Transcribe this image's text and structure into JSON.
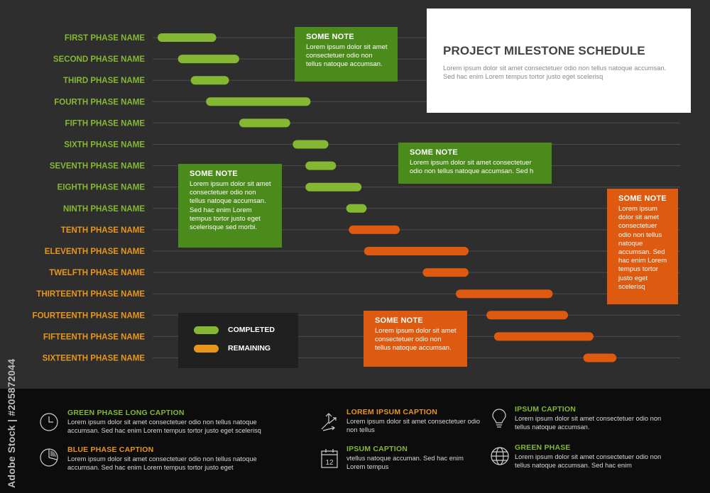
{
  "title": "PROJECT MILESTONE SCHEDULE",
  "subtitle": "Lorem ipsum dolor sit amet consectetuer odio non tellus natoque accumsan. Sed hac enim Lorem tempus tortor justo eget scelerisq",
  "colors": {
    "completed": "#84b832",
    "remaining": "#e7961a",
    "remaining_bar": "#de5a10",
    "note_green": "#4b8b1b",
    "note_orange": "#de5a10",
    "background": "#2e2e2e"
  },
  "chart_data": {
    "type": "gantt",
    "phases": [
      {
        "name": "FIRST PHASE NAME",
        "start": 0.0,
        "end": 1.15,
        "status": "completed"
      },
      {
        "name": "SECOND PHASE NAME",
        "start": 0.4,
        "end": 1.6,
        "status": "completed"
      },
      {
        "name": "THIRD PHASE NAME",
        "start": 0.65,
        "end": 1.4,
        "status": "completed"
      },
      {
        "name": "FOURTH PHASE NAME",
        "start": 0.95,
        "end": 3.0,
        "status": "completed"
      },
      {
        "name": "FIFTH PHASE NAME",
        "start": 1.6,
        "end": 2.6,
        "status": "completed"
      },
      {
        "name": "SIXTH PHASE NAME",
        "start": 2.65,
        "end": 3.35,
        "status": "completed"
      },
      {
        "name": "SEVENTH PHASE NAME",
        "start": 2.9,
        "end": 3.5,
        "status": "completed"
      },
      {
        "name": "EIGHTH PHASE NAME",
        "start": 2.9,
        "end": 4.0,
        "status": "completed"
      },
      {
        "name": "NINTH PHASE NAME",
        "start": 3.7,
        "end": 4.1,
        "status": "completed"
      },
      {
        "name": "TENTH PHASE NAME",
        "start": 3.75,
        "end": 4.75,
        "status": "remaining"
      },
      {
        "name": "ELEVENTH PHASE NAME",
        "start": 4.05,
        "end": 6.1,
        "status": "remaining"
      },
      {
        "name": "TWELFTH PHASE NAME",
        "start": 5.2,
        "end": 6.1,
        "status": "remaining"
      },
      {
        "name": "THIRTEENTH PHASE NAME",
        "start": 5.85,
        "end": 7.75,
        "status": "remaining"
      },
      {
        "name": "FOURTEENTH PHASE NAME",
        "start": 6.45,
        "end": 8.05,
        "status": "remaining"
      },
      {
        "name": "FIFTEENTH PHASE NAME",
        "start": 6.6,
        "end": 8.55,
        "status": "remaining"
      },
      {
        "name": "SIXTEENTH PHASE NAME",
        "start": 8.35,
        "end": 9.0,
        "status": "remaining"
      }
    ],
    "legend": {
      "completed": "COMPLETED",
      "remaining": "REMAINING"
    }
  },
  "notes": [
    {
      "title": "SOME NOTE",
      "body": "Lorem ipsum dolor sit amet consectetuer odio non tellus natoque accumsan.",
      "color": "green"
    },
    {
      "title": "SOME NOTE",
      "body": "Lorem ipsum dolor sit amet consectetuer odio non tellus natoque accumsan. Sed h",
      "color": "green"
    },
    {
      "title": "SOME NOTE",
      "body": "Lorem ipsum dolor sit amet consectetuer odio non tellus natoque accumsan. Sed hac enim Lorem tempus tortor justo eget scelerisque sed morbi.",
      "color": "green"
    },
    {
      "title": "SOME NOTE",
      "body": "Lorem ipsum dolor sit amet consectetuer odio non tellus natoque accumsan. Sed hac enim Lorem tempus tortor justo eget scelerisq",
      "color": "orange"
    },
    {
      "title": "SOME NOTE",
      "body": "Lorem ipsum dolor sit amet consectetuer odio non tellus natoque accumsan.",
      "color": "orange"
    }
  ],
  "footer": {
    "captions": [
      {
        "heading": "GREEN PHASE LONG CAPTION",
        "body": "Lorem ipsum dolor sit amet consectetuer odio non tellus natoque accumsan. Sed hac enim Lorem tempus tortor justo eget scelerisq",
        "color": "#84b832",
        "icon": "clock-icon"
      },
      {
        "heading": "BLUE PHASE CAPTION",
        "body": "Lorem ipsum dolor sit amet consectetuer odio non tellus natoque accumsan. Sed hac enim Lorem tempus tortor justo eget",
        "color": "#e7961a",
        "icon": "pie-chart-icon"
      },
      {
        "heading": "LOREM IPSUM CAPTION",
        "body": "Lorem ipsum dolor sit amet consectetuer odio non tellus",
        "color": "#e7961a",
        "icon": "arrows-icon"
      },
      {
        "heading": "IPSUM CAPTION",
        "body": "vtellus natoque accuman. Sed hac enim Lorem tempus",
        "color": "#84b832",
        "icon": "calendar-icon",
        "icon_text": "12"
      },
      {
        "heading": "IPSUM CAPTION",
        "body": "Lorem ipsum dolor sit amet consectetuer odio non tellus natoque accumsan.",
        "color": "#84b832",
        "icon": "lightbulb-icon"
      },
      {
        "heading": "GREEN PHASE",
        "body": "Lorem ipsum dolor sit amet consectetuer odio non tellus natoque accumsan. Sed hac enim",
        "color": "#84b832",
        "icon": "globe-icon"
      }
    ]
  },
  "watermark": "Adobe Stock | #205872044"
}
